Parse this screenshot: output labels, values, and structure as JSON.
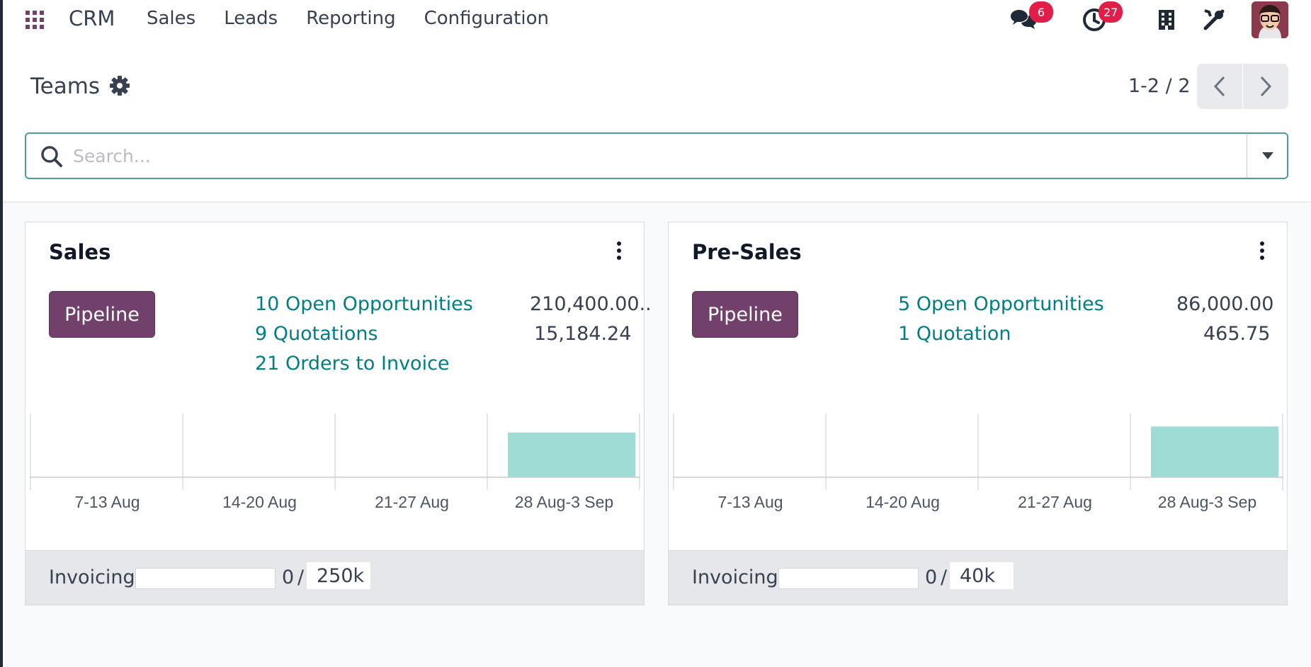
{
  "navbar": {
    "brand": "CRM",
    "menu": [
      "Sales",
      "Leads",
      "Reporting",
      "Configuration"
    ],
    "messages_count": "6",
    "activities_count": "27"
  },
  "control_panel": {
    "breadcrumb": "Teams",
    "pager": "1-2 / 2",
    "search_placeholder": "Search..."
  },
  "teams": [
    {
      "name": "Sales",
      "pipeline_label": "Pipeline",
      "stats": [
        {
          "label": "10 Open Opportunities",
          "value": "210,400.00.."
        },
        {
          "label": "9 Quotations",
          "value": "15,184.24"
        },
        {
          "label": "21 Orders to Invoice",
          "value": ""
        }
      ],
      "footer": {
        "label": "Invoicing",
        "current": "0",
        "target": "250k",
        "progress": 0
      }
    },
    {
      "name": "Pre-Sales",
      "pipeline_label": "Pipeline",
      "stats": [
        {
          "label": "5 Open Opportunities",
          "value": "86,000.00"
        },
        {
          "label": "1 Quotation",
          "value": "465.75"
        }
      ],
      "footer": {
        "label": "Invoicing",
        "current": "0",
        "target": "40k",
        "progress": 0
      }
    }
  ],
  "chart_data": [
    {
      "type": "bar",
      "categories": [
        "7-13 Aug",
        "14-20 Aug",
        "21-27 Aug",
        "28 Aug-3 Sep"
      ],
      "values": [
        0,
        0,
        0,
        210400
      ],
      "ylim": [
        0,
        300000
      ],
      "grid": true,
      "color": "#9fdcd5"
    },
    {
      "type": "bar",
      "categories": [
        "7-13 Aug",
        "14-20 Aug",
        "21-27 Aug",
        "28 Aug-3 Sep"
      ],
      "values": [
        0,
        0,
        0,
        86000
      ],
      "ylim": [
        0,
        108000
      ],
      "grid": true,
      "color": "#9fdcd5"
    }
  ]
}
